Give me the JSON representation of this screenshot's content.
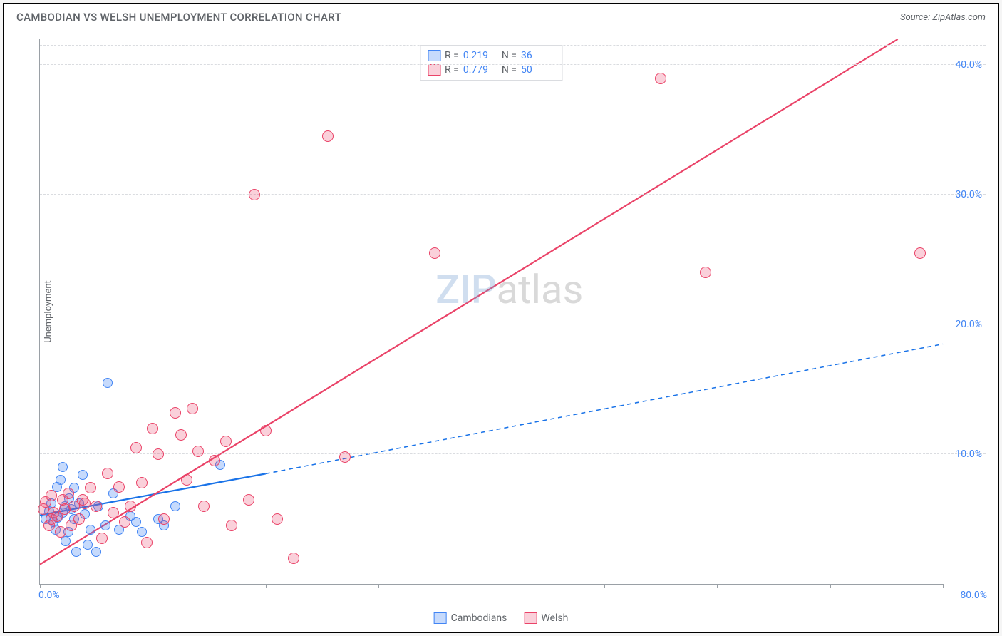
{
  "title": "CAMBODIAN VS WELSH UNEMPLOYMENT CORRELATION CHART",
  "source_label": "Source: ZipAtlas.com",
  "watermark": {
    "prefix": "ZIP",
    "suffix": "atlas"
  },
  "chart": {
    "type": "scatter",
    "ylabel": "Unemployment",
    "xlim": [
      0,
      80
    ],
    "ylim": [
      0,
      42
    ],
    "x_ticks_minor": [
      0,
      10,
      20,
      30,
      40,
      50,
      60,
      70,
      80
    ],
    "x_tick_labels": [
      {
        "pos": 0,
        "label": "0.0%"
      },
      {
        "pos": 80,
        "label": "80.0%"
      }
    ],
    "y_gridlines": [
      10,
      20,
      30,
      40,
      41.5
    ],
    "y_tick_labels": [
      {
        "pos": 10,
        "label": "10.0%"
      },
      {
        "pos": 20,
        "label": "20.0%"
      },
      {
        "pos": 30,
        "label": "30.0%"
      },
      {
        "pos": 40,
        "label": "40.0%"
      }
    ],
    "background_color": "#ffffff",
    "grid_color": "#dadce0",
    "axis_color": "#9aa0a6",
    "series": [
      {
        "name": "Cambodians",
        "color_fill": "rgba(66,133,244,0.30)",
        "color_stroke": "#4285f4",
        "marker_radius": 7,
        "R": "0.219",
        "N": "36",
        "trend": {
          "solid": {
            "x1": 0,
            "y1": 5.3,
            "x2": 20,
            "y2": 8.5
          },
          "dashed": {
            "x1": 20,
            "y1": 8.5,
            "x2": 80,
            "y2": 18.5
          },
          "color": "#1a73e8",
          "width": 2.2
        },
        "points": [
          [
            0.5,
            5.0
          ],
          [
            0.8,
            5.6
          ],
          [
            1.0,
            6.2
          ],
          [
            1.2,
            4.8
          ],
          [
            1.4,
            4.2
          ],
          [
            1.5,
            7.5
          ],
          [
            1.6,
            5.1
          ],
          [
            1.8,
            8.0
          ],
          [
            2.0,
            5.5
          ],
          [
            2.0,
            9.0
          ],
          [
            2.2,
            6.0
          ],
          [
            2.3,
            3.3
          ],
          [
            2.5,
            4.0
          ],
          [
            2.6,
            6.6
          ],
          [
            2.8,
            5.8
          ],
          [
            3.0,
            7.4
          ],
          [
            3.0,
            5.0
          ],
          [
            3.2,
            2.5
          ],
          [
            3.5,
            6.2
          ],
          [
            3.8,
            8.4
          ],
          [
            4.0,
            5.4
          ],
          [
            4.2,
            3.0
          ],
          [
            4.5,
            4.2
          ],
          [
            5.0,
            2.5
          ],
          [
            5.2,
            6.0
          ],
          [
            5.8,
            4.5
          ],
          [
            6.5,
            7.0
          ],
          [
            7.0,
            4.2
          ],
          [
            8.0,
            5.2
          ],
          [
            8.5,
            4.8
          ],
          [
            9.0,
            4.0
          ],
          [
            6.0,
            15.5
          ],
          [
            16.0,
            9.2
          ],
          [
            10.5,
            5.0
          ],
          [
            11.0,
            4.5
          ],
          [
            12.0,
            6.0
          ]
        ]
      },
      {
        "name": "Welsh",
        "color_fill": "rgba(234,67,106,0.25)",
        "color_stroke": "#ea4368",
        "marker_radius": 8,
        "R": "0.779",
        "N": "50",
        "trend": {
          "solid": {
            "x1": 0,
            "y1": 1.5,
            "x2": 76,
            "y2": 42
          },
          "color": "#ea4368",
          "width": 2.2
        },
        "points": [
          [
            0.3,
            5.8
          ],
          [
            0.5,
            6.3
          ],
          [
            0.8,
            4.5
          ],
          [
            1.0,
            5.0
          ],
          [
            1.0,
            6.8
          ],
          [
            1.2,
            5.5
          ],
          [
            1.5,
            5.2
          ],
          [
            1.8,
            4.0
          ],
          [
            2.0,
            6.5
          ],
          [
            2.2,
            5.8
          ],
          [
            2.5,
            7.0
          ],
          [
            2.8,
            4.5
          ],
          [
            3.0,
            6.0
          ],
          [
            3.5,
            5.0
          ],
          [
            3.8,
            6.5
          ],
          [
            4.0,
            6.2
          ],
          [
            4.5,
            7.4
          ],
          [
            5.0,
            6.0
          ],
          [
            5.5,
            3.5
          ],
          [
            6.0,
            8.5
          ],
          [
            6.5,
            5.5
          ],
          [
            7.0,
            7.5
          ],
          [
            7.5,
            4.8
          ],
          [
            8.0,
            6.0
          ],
          [
            8.5,
            10.5
          ],
          [
            9.0,
            7.8
          ],
          [
            9.5,
            3.2
          ],
          [
            10.0,
            12.0
          ],
          [
            10.5,
            10.0
          ],
          [
            11.0,
            5.0
          ],
          [
            12.0,
            13.2
          ],
          [
            12.5,
            11.5
          ],
          [
            13.0,
            8.0
          ],
          [
            13.5,
            13.5
          ],
          [
            14.0,
            10.2
          ],
          [
            14.5,
            6.0
          ],
          [
            15.5,
            9.5
          ],
          [
            16.5,
            11.0
          ],
          [
            17.0,
            4.5
          ],
          [
            18.5,
            6.5
          ],
          [
            19.0,
            30.0
          ],
          [
            20.0,
            11.8
          ],
          [
            21.0,
            5.0
          ],
          [
            22.5,
            2.0
          ],
          [
            25.5,
            34.5
          ],
          [
            27.0,
            9.8
          ],
          [
            35.0,
            25.5
          ],
          [
            55.0,
            39.0
          ],
          [
            59.0,
            24.0
          ],
          [
            78.0,
            25.5
          ]
        ]
      }
    ],
    "legend_top": {
      "rows": [
        {
          "swatch_fill": "rgba(66,133,244,0.30)",
          "swatch_border": "#4285f4",
          "R": "0.219",
          "N": "36"
        },
        {
          "swatch_fill": "rgba(234,67,106,0.25)",
          "swatch_border": "#ea4368",
          "R": "0.779",
          "N": "50"
        }
      ]
    },
    "legend_bottom": [
      {
        "swatch_fill": "rgba(66,133,244,0.30)",
        "swatch_border": "#4285f4",
        "label": "Cambodians"
      },
      {
        "swatch_fill": "rgba(234,67,106,0.25)",
        "swatch_border": "#ea4368",
        "label": "Welsh"
      }
    ]
  }
}
